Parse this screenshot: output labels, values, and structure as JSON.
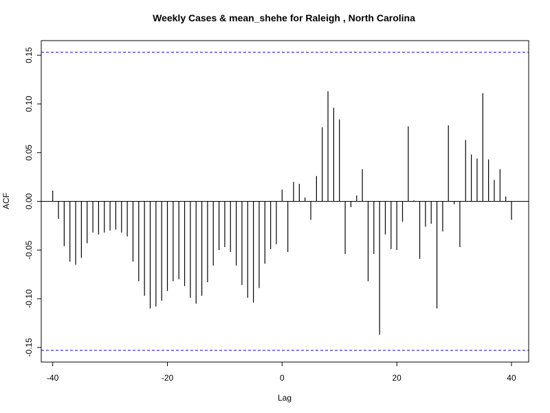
{
  "chart_data": {
    "type": "bar",
    "title": "Weekly Cases & mean_shehe for Raleigh , North Carolina",
    "xlabel": "Lag",
    "ylabel": "ACF",
    "xlim": [
      -42,
      43
    ],
    "ylim": [
      -0.165,
      0.165
    ],
    "x_ticks": [
      -40,
      -20,
      0,
      20,
      40
    ],
    "x_tick_labels": [
      "-40",
      "-20",
      "0",
      "20",
      "40"
    ],
    "y_ticks": [
      -0.15,
      -0.1,
      -0.05,
      0.0,
      0.05,
      0.1,
      0.15
    ],
    "y_tick_labels": [
      "-0.15",
      "-0.10",
      "-0.05",
      "0.00",
      "0.05",
      "0.10",
      "0.15"
    ],
    "confidence_bound": 0.153,
    "grid": false,
    "colors": {
      "bars": "#000000",
      "confidence_lines": "#0000cc",
      "zero_line": "#000000",
      "axes": "#000000"
    },
    "lags": [
      -40,
      -39,
      -38,
      -37,
      -36,
      -35,
      -34,
      -33,
      -32,
      -31,
      -30,
      -29,
      -28,
      -27,
      -26,
      -25,
      -24,
      -23,
      -22,
      -21,
      -20,
      -19,
      -18,
      -17,
      -16,
      -15,
      -14,
      -13,
      -12,
      -11,
      -10,
      -9,
      -8,
      -7,
      -6,
      -5,
      -4,
      -3,
      -2,
      -1,
      0,
      1,
      2,
      3,
      4,
      5,
      6,
      7,
      8,
      9,
      10,
      11,
      12,
      13,
      14,
      15,
      16,
      17,
      18,
      19,
      20,
      21,
      22,
      23,
      24,
      25,
      26,
      27,
      28,
      29,
      30,
      31,
      32,
      33,
      34,
      35,
      36,
      37,
      38,
      39,
      40
    ],
    "values": [
      0.011,
      -0.018,
      -0.046,
      -0.062,
      -0.065,
      -0.058,
      -0.043,
      -0.032,
      -0.034,
      -0.032,
      -0.03,
      -0.029,
      -0.032,
      -0.036,
      -0.062,
      -0.082,
      -0.097,
      -0.11,
      -0.108,
      -0.102,
      -0.092,
      -0.082,
      -0.08,
      -0.087,
      -0.099,
      -0.105,
      -0.097,
      -0.083,
      -0.066,
      -0.05,
      -0.047,
      -0.052,
      -0.066,
      -0.086,
      -0.099,
      -0.104,
      -0.089,
      -0.064,
      -0.049,
      -0.044,
      0.012,
      -0.052,
      0.02,
      0.018,
      0.004,
      -0.019,
      0.026,
      0.076,
      0.113,
      0.096,
      0.084,
      -0.054,
      -0.006,
      0.006,
      0.033,
      -0.082,
      -0.054,
      -0.137,
      -0.034,
      -0.049,
      -0.05,
      -0.021,
      0.077,
      0.001,
      -0.059,
      -0.026,
      -0.023,
      -0.11,
      -0.031,
      0.078,
      -0.003,
      -0.047,
      0.063,
      0.048,
      0.044,
      0.111,
      0.043,
      0.022,
      0.033,
      0.005,
      -0.019
    ]
  }
}
